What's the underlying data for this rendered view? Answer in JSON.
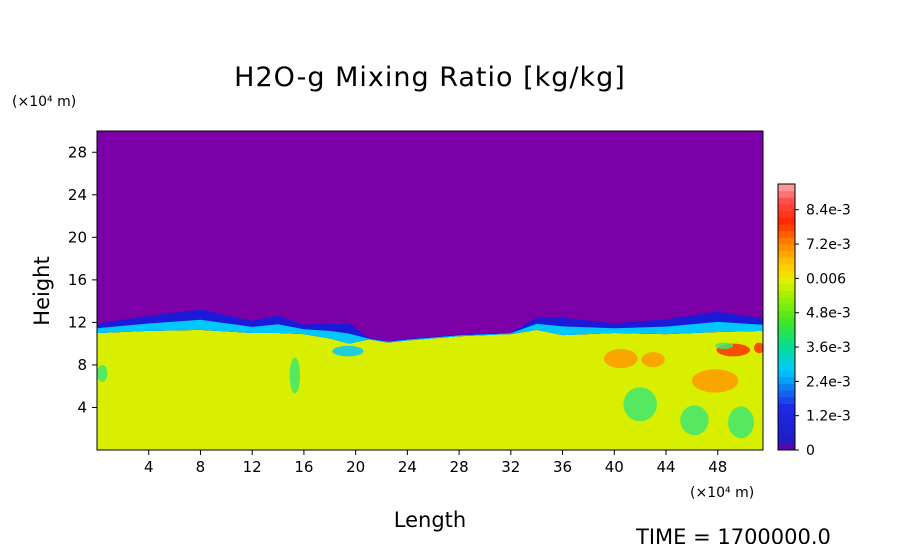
{
  "chart_data": {
    "type": "heatmap",
    "title": "H2O-g Mixing Ratio [kg/kg]",
    "xlabel": "Length",
    "ylabel": "Height",
    "x_unit": "(×10⁴ m)",
    "y_unit": "(×10⁴ m)",
    "x_ticks": [
      "4",
      "8",
      "12",
      "16",
      "20",
      "24",
      "28",
      "32",
      "36",
      "40",
      "44",
      "48"
    ],
    "y_ticks": [
      "4",
      "8",
      "12",
      "16",
      "20",
      "24",
      "28"
    ],
    "xlim": [
      0,
      51.5
    ],
    "ylim": [
      0,
      30
    ],
    "colorbar": {
      "labels": [
        "0",
        "1.2e-3",
        "2.4e-3",
        "3.6e-3",
        "4.8e-3",
        "0.006",
        "7.2e-3",
        "8.4e-3"
      ],
      "values": [
        0,
        0.0012,
        0.0024,
        0.0036,
        0.0048,
        0.006,
        0.0072,
        0.0084
      ],
      "min": 0,
      "max": 0.0093
    },
    "field_colors": {
      "dry_upper": "#7b00a8",
      "moist_lower": "#d8f000",
      "boundary": [
        "#1a1ad8",
        "#00c8ff",
        "#40e870"
      ],
      "high": [
        "#ff9a00",
        "#ff3000"
      ]
    },
    "grid": false
  },
  "time_label": "TIME = 1700000.0"
}
